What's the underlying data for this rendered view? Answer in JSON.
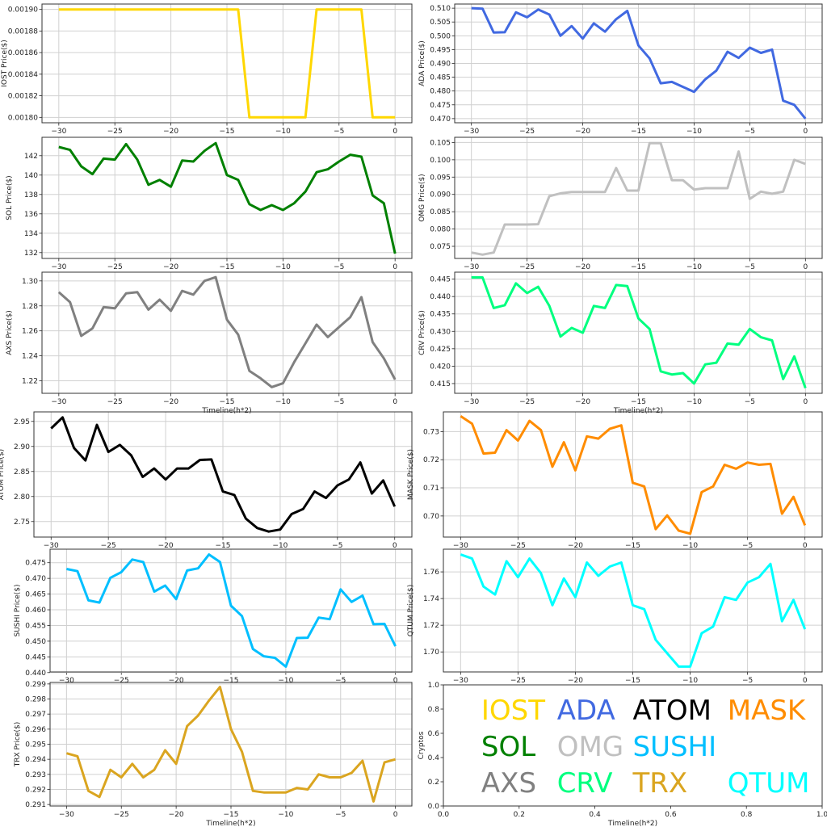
{
  "x_values": [
    -30,
    -29,
    -28,
    -27,
    -26,
    -25,
    -24,
    -23,
    -22,
    -21,
    -20,
    -19,
    -18,
    -17,
    -16,
    -15,
    -14,
    -13,
    -12,
    -11,
    -10,
    -9,
    -8,
    -7,
    -6,
    -5,
    -4,
    -3,
    -2,
    -1,
    0
  ],
  "chart_data": [
    {
      "type": "line",
      "name": "IOST",
      "color": "#FFD700",
      "ylabel": "IOST Price($)",
      "xlabel": "",
      "ylim": [
        0.001795,
        0.001905
      ],
      "yticks": [
        0.0018,
        0.00182,
        0.00184,
        0.00186,
        0.00188,
        0.0019
      ],
      "ytick_labels": [
        "0.00180",
        "0.00182",
        "0.00184",
        "0.00186",
        "0.00188",
        "0.00190"
      ],
      "xticks": [
        -30,
        -25,
        -20,
        -15,
        -10,
        -5,
        0
      ],
      "xtick_labels": [
        "−30",
        "−25",
        "−20",
        "−15",
        "−10",
        "−5",
        "0"
      ],
      "values": [
        0.0019,
        0.0019,
        0.0019,
        0.0019,
        0.0019,
        0.0019,
        0.0019,
        0.0019,
        0.0019,
        0.0019,
        0.0019,
        0.0019,
        0.0019,
        0.0019,
        0.0019,
        0.0019,
        0.0019,
        0.0018,
        0.0018,
        0.0018,
        0.0018,
        0.0018,
        0.0018,
        0.0019,
        0.0019,
        0.0019,
        0.0019,
        0.0019,
        0.0018,
        0.0018,
        0.0018
      ]
    },
    {
      "type": "line",
      "name": "ADA",
      "color": "#4169E1",
      "ylabel": "ADA  Price($)",
      "xlabel": "",
      "ylim": [
        0.4685,
        0.5115
      ],
      "yticks": [
        0.47,
        0.475,
        0.48,
        0.485,
        0.49,
        0.495,
        0.5,
        0.505,
        0.51
      ],
      "ytick_labels": [
        "0.470",
        "0.475",
        "0.480",
        "0.485",
        "0.490",
        "0.495",
        "0.500",
        "0.505",
        "0.510"
      ],
      "xticks": [
        -30,
        -25,
        -20,
        -15,
        -10,
        -5,
        0
      ],
      "xtick_labels": [
        "−30",
        "−25",
        "−20",
        "−15",
        "−10",
        "−5",
        "0"
      ],
      "values": [
        0.51,
        0.5098,
        0.5012,
        0.5013,
        0.5085,
        0.5067,
        0.5095,
        0.5077,
        0.5,
        0.5035,
        0.499,
        0.5045,
        0.5015,
        0.506,
        0.509,
        0.4965,
        0.4918,
        0.4828,
        0.4833,
        0.4815,
        0.4797,
        0.4842,
        0.4874,
        0.4942,
        0.492,
        0.4957,
        0.4938,
        0.495,
        0.4765,
        0.475,
        0.47
      ]
    },
    {
      "type": "line",
      "name": "SOL",
      "color": "#008000",
      "ylabel": "SOL Price($)",
      "xlabel": "",
      "ylim": [
        131.4,
        143.9
      ],
      "yticks": [
        132,
        134,
        136,
        138,
        140,
        142
      ],
      "ytick_labels": [
        "132",
        "134",
        "136",
        "138",
        "140",
        "142"
      ],
      "xticks": [
        -30,
        -25,
        -20,
        -15,
        -10,
        -5,
        0
      ],
      "xtick_labels": [
        "−30",
        "−25",
        "−20",
        "−15",
        "−10",
        "−5",
        "0"
      ],
      "values": [
        142.9,
        142.6,
        140.9,
        140.1,
        141.7,
        141.6,
        143.2,
        141.6,
        139.0,
        139.5,
        138.8,
        141.5,
        141.4,
        142.5,
        143.3,
        140.0,
        139.5,
        137.0,
        136.4,
        136.9,
        136.4,
        137.1,
        138.3,
        140.3,
        140.6,
        141.4,
        142.1,
        141.9,
        137.9,
        137.1,
        131.9
      ]
    },
    {
      "type": "line",
      "name": "OMG",
      "color": "#C0C0C0",
      "ylabel": "OMG  Price($)",
      "xlabel": "",
      "ylim": [
        0.0715,
        0.1065
      ],
      "yticks": [
        0.075,
        0.08,
        0.085,
        0.09,
        0.095,
        0.1,
        0.105
      ],
      "ytick_labels": [
        "0.075",
        "0.080",
        "0.085",
        "0.090",
        "0.095",
        "0.100",
        "0.105"
      ],
      "xticks": [
        -30,
        -25,
        -20,
        -15,
        -10,
        -5,
        0
      ],
      "xtick_labels": [
        "−30",
        "−25",
        "−20",
        "−15",
        "−10",
        "−5",
        "0"
      ],
      "values": [
        0.0732,
        0.0726,
        0.0732,
        0.0813,
        0.0813,
        0.0813,
        0.0814,
        0.0895,
        0.0903,
        0.0907,
        0.0907,
        0.0907,
        0.0907,
        0.0976,
        0.0911,
        0.0911,
        0.1048,
        0.1048,
        0.0941,
        0.0941,
        0.0914,
        0.0918,
        0.0918,
        0.0918,
        0.1024,
        0.0887,
        0.0908,
        0.0902,
        0.0908,
        0.1,
        0.0988
      ]
    },
    {
      "type": "line",
      "name": "AXS",
      "color": "#808080",
      "ylabel": "AXS Price($)",
      "xlabel": "Timeline(h*2)",
      "ylim": [
        1.21,
        1.307
      ],
      "yticks": [
        1.22,
        1.24,
        1.26,
        1.28,
        1.3
      ],
      "ytick_labels": [
        "1.22",
        "1.24",
        "1.26",
        "1.28",
        "1.30"
      ],
      "xticks": [
        -30,
        -25,
        -20,
        -15,
        -10,
        -5,
        0
      ],
      "xtick_labels": [
        "−30",
        "−25",
        "−20",
        "−15",
        "−10",
        "−5",
        "0"
      ],
      "values": [
        1.291,
        1.283,
        1.256,
        1.262,
        1.279,
        1.278,
        1.29,
        1.291,
        1.277,
        1.285,
        1.276,
        1.292,
        1.289,
        1.3,
        1.303,
        1.269,
        1.257,
        1.228,
        1.222,
        1.215,
        1.218,
        1.235,
        1.25,
        1.265,
        1.255,
        1.263,
        1.271,
        1.287,
        1.251,
        1.238,
        1.221
      ]
    },
    {
      "type": "line",
      "name": "CRV",
      "color": "#00FF7F",
      "ylabel": "CRV  Price($)",
      "xlabel": "Timeline(h*2)",
      "ylim": [
        0.4122,
        0.447
      ],
      "yticks": [
        0.415,
        0.42,
        0.425,
        0.43,
        0.435,
        0.44,
        0.445
      ],
      "ytick_labels": [
        "0.415",
        "0.420",
        "0.425",
        "0.430",
        "0.435",
        "0.440",
        "0.445"
      ],
      "xticks": [
        -30,
        -25,
        -20,
        -15,
        -10,
        -5,
        0
      ],
      "xtick_labels": [
        "−30",
        "−25",
        "−20",
        "−15",
        "−10",
        "−5",
        "0"
      ],
      "values": [
        0.4455,
        0.4455,
        0.4367,
        0.4375,
        0.4438,
        0.441,
        0.4428,
        0.4373,
        0.4285,
        0.431,
        0.4296,
        0.4373,
        0.4367,
        0.4433,
        0.443,
        0.4337,
        0.4307,
        0.4185,
        0.4176,
        0.418,
        0.415,
        0.4205,
        0.421,
        0.4265,
        0.4262,
        0.4307,
        0.4283,
        0.4274,
        0.4163,
        0.4228,
        0.4137
      ]
    },
    {
      "type": "line",
      "name": "ATOM",
      "color": "#000000",
      "ylabel": "ATOM  Price($)",
      "xlabel": "",
      "ylim": [
        2.719,
        2.969
      ],
      "yticks": [
        2.75,
        2.8,
        2.85,
        2.9,
        2.95
      ],
      "ytick_labels": [
        "2.75",
        "2.80",
        "2.85",
        "2.90",
        "2.95"
      ],
      "xticks": [
        -30,
        -25,
        -20,
        -15,
        -10,
        -5,
        0
      ],
      "xtick_labels": [
        "−30",
        "−25",
        "−20",
        "−15",
        "−10",
        "−5",
        "0"
      ],
      "values": [
        2.936,
        2.958,
        2.897,
        2.872,
        2.943,
        2.889,
        2.903,
        2.882,
        2.839,
        2.856,
        2.834,
        2.856,
        2.856,
        2.873,
        2.874,
        2.81,
        2.803,
        2.756,
        2.737,
        2.73,
        2.734,
        2.765,
        2.775,
        2.81,
        2.797,
        2.822,
        2.834,
        2.868,
        2.806,
        2.832,
        2.78
      ]
    },
    {
      "type": "line",
      "name": "MASK",
      "color": "#FF8C00",
      "ylabel": "MASK  Price($)",
      "xlabel": "",
      "ylim": [
        0.6925,
        0.737
      ],
      "yticks": [
        0.7,
        0.71,
        0.72,
        0.73
      ],
      "ytick_labels": [
        "0.70",
        "0.71",
        "0.72",
        "0.73"
      ],
      "xticks": [
        -30,
        -25,
        -20,
        -15,
        -10,
        -5,
        0
      ],
      "xtick_labels": [
        "−30",
        "−25",
        "−20",
        "−15",
        "−10",
        "−5",
        "0"
      ],
      "values": [
        0.7355,
        0.7328,
        0.7222,
        0.7225,
        0.7305,
        0.7268,
        0.7338,
        0.7305,
        0.7175,
        0.7262,
        0.7162,
        0.7283,
        0.7275,
        0.731,
        0.7322,
        0.7118,
        0.7105,
        0.6953,
        0.7002,
        0.6948,
        0.6937,
        0.7085,
        0.7105,
        0.7182,
        0.7168,
        0.719,
        0.7182,
        0.7185,
        0.7008,
        0.7068,
        0.6967
      ]
    },
    {
      "type": "line",
      "name": "SUSHI",
      "color": "#00BFFF",
      "ylabel": "SUSHI  Price($)",
      "xlabel": "",
      "ylim": [
        0.4402,
        0.4793
      ],
      "yticks": [
        0.44,
        0.445,
        0.45,
        0.455,
        0.46,
        0.465,
        0.47,
        0.475
      ],
      "ytick_labels": [
        "0.440",
        "0.445",
        "0.450",
        "0.455",
        "0.460",
        "0.465",
        "0.470",
        "0.475"
      ],
      "xticks": [
        -30,
        -25,
        -20,
        -15,
        -10,
        -5,
        0
      ],
      "xtick_labels": [
        "−30",
        "−25",
        "−20",
        "−15",
        "−10",
        "−5",
        "0"
      ],
      "values": [
        0.473,
        0.4723,
        0.463,
        0.4623,
        0.4702,
        0.472,
        0.476,
        0.4752,
        0.4658,
        0.4677,
        0.4634,
        0.4725,
        0.4732,
        0.4776,
        0.4752,
        0.4613,
        0.458,
        0.4475,
        0.4452,
        0.4447,
        0.4419,
        0.451,
        0.4511,
        0.4575,
        0.457,
        0.4665,
        0.4625,
        0.4645,
        0.4554,
        0.4555,
        0.4484
      ]
    },
    {
      "type": "line",
      "name": "QTUM",
      "color": "#00FFFF",
      "ylabel": "QTUM Price($)",
      "xlabel": "",
      "ylim": [
        1.685,
        1.777
      ],
      "yticks": [
        1.7,
        1.72,
        1.74,
        1.76
      ],
      "ytick_labels": [
        "1.70",
        "1.72",
        "1.74",
        "1.76"
      ],
      "xticks": [
        -30,
        -25,
        -20,
        -15,
        -10,
        -5,
        0
      ],
      "xtick_labels": [
        "−30",
        "−25",
        "−20",
        "−15",
        "−10",
        "−5",
        "0"
      ],
      "values": [
        1.773,
        1.77,
        1.749,
        1.743,
        1.768,
        1.756,
        1.77,
        1.759,
        1.735,
        1.755,
        1.741,
        1.767,
        1.757,
        1.764,
        1.767,
        1.735,
        1.732,
        1.709,
        1.699,
        1.689,
        1.689,
        1.714,
        1.719,
        1.741,
        1.739,
        1.752,
        1.756,
        1.766,
        1.723,
        1.739,
        1.717
      ]
    },
    {
      "type": "line",
      "name": "TRX",
      "color": "#DAA520",
      "ylabel": "TRX Price($)",
      "xlabel": "Timeline(h*2)",
      "ylim": [
        0.2909,
        0.2991
      ],
      "yticks": [
        0.291,
        0.292,
        0.293,
        0.294,
        0.295,
        0.296,
        0.297,
        0.298,
        0.299
      ],
      "ytick_labels": [
        "0.291",
        "0.292",
        "0.293",
        "0.294",
        "0.295",
        "0.296",
        "0.297",
        "0.298",
        "0.299"
      ],
      "xticks": [
        -30,
        -25,
        -20,
        -15,
        -10,
        -5,
        0
      ],
      "xtick_labels": [
        "−30",
        "−25",
        "−20",
        "−15",
        "−10",
        "−5",
        "0"
      ],
      "values": [
        0.2944,
        0.2942,
        0.2919,
        0.2915,
        0.2933,
        0.2928,
        0.2937,
        0.2928,
        0.2933,
        0.2946,
        0.2937,
        0.2962,
        0.2969,
        0.2979,
        0.2988,
        0.296,
        0.2945,
        0.2919,
        0.2918,
        0.2918,
        0.2918,
        0.2921,
        0.292,
        0.293,
        0.2928,
        0.2928,
        0.2931,
        0.2939,
        0.2912,
        0.2938,
        0.294
      ]
    },
    {
      "type": "text-legend",
      "name": "legend",
      "ylabel": "Cryptos",
      "xlabel": "Timeline(h*2)",
      "xlim": [
        0,
        1
      ],
      "ylim": [
        0,
        1
      ],
      "xticks": [
        0,
        0.2,
        0.4,
        0.6,
        0.8,
        1
      ],
      "xtick_labels": [
        "0.0",
        "0.2",
        "0.4",
        "0.6",
        "0.8",
        "1.0"
      ],
      "yticks": [
        0,
        0.2,
        0.4,
        0.6,
        0.8,
        1
      ],
      "ytick_labels": [
        "0.0",
        "0.2",
        "0.4",
        "0.6",
        "0.8",
        "1.0"
      ],
      "entries": [
        {
          "text": "IOST",
          "color": "#FFD700",
          "x": 0.1,
          "y": 0.8
        },
        {
          "text": "ADA",
          "color": "#4169E1",
          "x": 0.3,
          "y": 0.8
        },
        {
          "text": "ATOM",
          "color": "#000000",
          "x": 0.5,
          "y": 0.8
        },
        {
          "text": "MASK",
          "color": "#FF8C00",
          "x": 0.75,
          "y": 0.8
        },
        {
          "text": "SOL",
          "color": "#008000",
          "x": 0.1,
          "y": 0.5
        },
        {
          "text": "OMG",
          "color": "#C0C0C0",
          "x": 0.3,
          "y": 0.5
        },
        {
          "text": "SUSHI",
          "color": "#00BFFF",
          "x": 0.5,
          "y": 0.5
        },
        {
          "text": "AXS",
          "color": "#808080",
          "x": 0.1,
          "y": 0.2
        },
        {
          "text": "CRV",
          "color": "#00FF7F",
          "x": 0.3,
          "y": 0.2
        },
        {
          "text": "TRX",
          "color": "#DAA520",
          "x": 0.5,
          "y": 0.2
        },
        {
          "text": "QTUM",
          "color": "#00FFFF",
          "x": 0.75,
          "y": 0.2
        }
      ]
    }
  ]
}
